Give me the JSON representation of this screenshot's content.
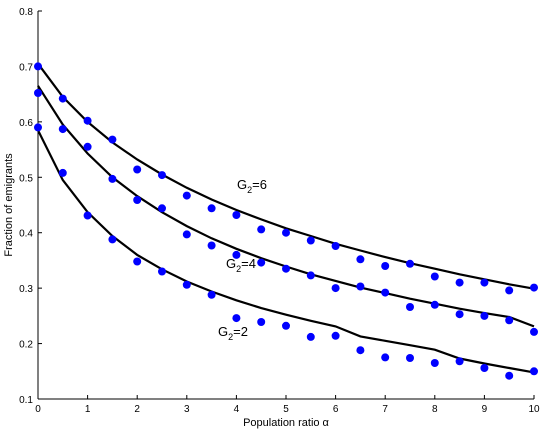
{
  "chart_data": {
    "type": "scatter",
    "xlabel": "Population ratio α",
    "ylabel": "Fraction of emigrants",
    "xlim": [
      0,
      10
    ],
    "ylim": [
      0.1,
      0.8
    ],
    "x_ticks": [
      "0",
      "1",
      "2",
      "3",
      "4",
      "5",
      "6",
      "7",
      "8",
      "9",
      "10"
    ],
    "y_ticks": [
      "0.1",
      "0.2",
      "0.3",
      "0.4",
      "0.5",
      "0.6",
      "0.7",
      "0.8"
    ],
    "grid": false,
    "legend": "none",
    "marker_color": "#0000ff",
    "line_color": "#000000",
    "series": [
      {
        "label_main": "G",
        "label_sub": "2",
        "label_rest": "=6",
        "points_x": [
          0,
          0.5,
          1,
          1.5,
          2,
          2.5,
          3,
          3.5,
          4,
          4.5,
          5,
          5.5,
          6,
          6.5,
          7,
          7.5,
          8,
          8.5,
          9,
          9.5,
          10
        ],
        "points_y": [
          0.7,
          0.642,
          0.602,
          0.568,
          0.514,
          0.504,
          0.467,
          0.444,
          0.432,
          0.406,
          0.4,
          0.386,
          0.376,
          0.352,
          0.34,
          0.344,
          0.321,
          0.31,
          0.31,
          0.296,
          0.301
        ],
        "curve_x": [
          0,
          0.5,
          1,
          1.5,
          2,
          2.5,
          3,
          3.5,
          4,
          4.5,
          5,
          5.5,
          6,
          6.5,
          7,
          7.5,
          8,
          8.5,
          9,
          9.5,
          10
        ],
        "curve_y": [
          0.705,
          0.645,
          0.6,
          0.563,
          0.532,
          0.505,
          0.481,
          0.46,
          0.441,
          0.424,
          0.408,
          0.394,
          0.38,
          0.368,
          0.356,
          0.345,
          0.335,
          0.325,
          0.316,
          0.307,
          0.299
        ]
      },
      {
        "label_main": "G",
        "label_sub": "2",
        "label_rest": "=4",
        "points_x": [
          0,
          0.5,
          1,
          1.5,
          2,
          2.5,
          3,
          3.5,
          4,
          4.5,
          5,
          5.5,
          6,
          6.5,
          7,
          7.5,
          8,
          8.5,
          9,
          9.5,
          10
        ],
        "points_y": [
          0.652,
          0.587,
          0.555,
          0.497,
          0.459,
          0.444,
          0.397,
          0.377,
          0.36,
          0.346,
          0.335,
          0.323,
          0.3,
          0.303,
          0.292,
          0.266,
          0.27,
          0.253,
          0.25,
          0.242,
          0.221
        ],
        "curve_x": [
          0,
          0.5,
          1,
          1.5,
          2,
          2.5,
          3,
          3.5,
          4,
          4.5,
          5,
          5.5,
          6,
          6.5,
          7,
          7.5,
          8,
          8.5,
          9,
          9.5,
          10
        ],
        "curve_y": [
          0.665,
          0.595,
          0.543,
          0.5,
          0.466,
          0.437,
          0.412,
          0.39,
          0.371,
          0.354,
          0.339,
          0.325,
          0.313,
          0.301,
          0.291,
          0.281,
          0.272,
          0.263,
          0.255,
          0.248,
          0.231
        ]
      },
      {
        "label_main": "G",
        "label_sub": "2",
        "label_rest": "=2",
        "points_x": [
          0,
          0.5,
          1,
          1.5,
          2,
          2.5,
          3,
          3.5,
          4,
          4.5,
          5,
          5.5,
          6,
          6.5,
          7,
          7.5,
          8,
          8.5,
          9,
          9.5,
          10
        ],
        "points_y": [
          0.59,
          0.508,
          0.431,
          0.388,
          0.348,
          0.33,
          0.306,
          0.288,
          0.246,
          0.239,
          0.232,
          0.212,
          0.214,
          0.188,
          0.175,
          0.174,
          0.165,
          0.168,
          0.156,
          0.142,
          0.15
        ],
        "curve_x": [
          0,
          0.5,
          1,
          1.5,
          2,
          2.5,
          3,
          3.5,
          4,
          4.5,
          5,
          5.5,
          6,
          6.5,
          7,
          7.5,
          8,
          8.5,
          9,
          9.5,
          10
        ],
        "curve_y": [
          0.585,
          0.495,
          0.437,
          0.394,
          0.36,
          0.334,
          0.312,
          0.294,
          0.278,
          0.264,
          0.252,
          0.241,
          0.231,
          0.213,
          0.205,
          0.197,
          0.189,
          0.173,
          0.164,
          0.156,
          0.148
        ]
      }
    ]
  }
}
